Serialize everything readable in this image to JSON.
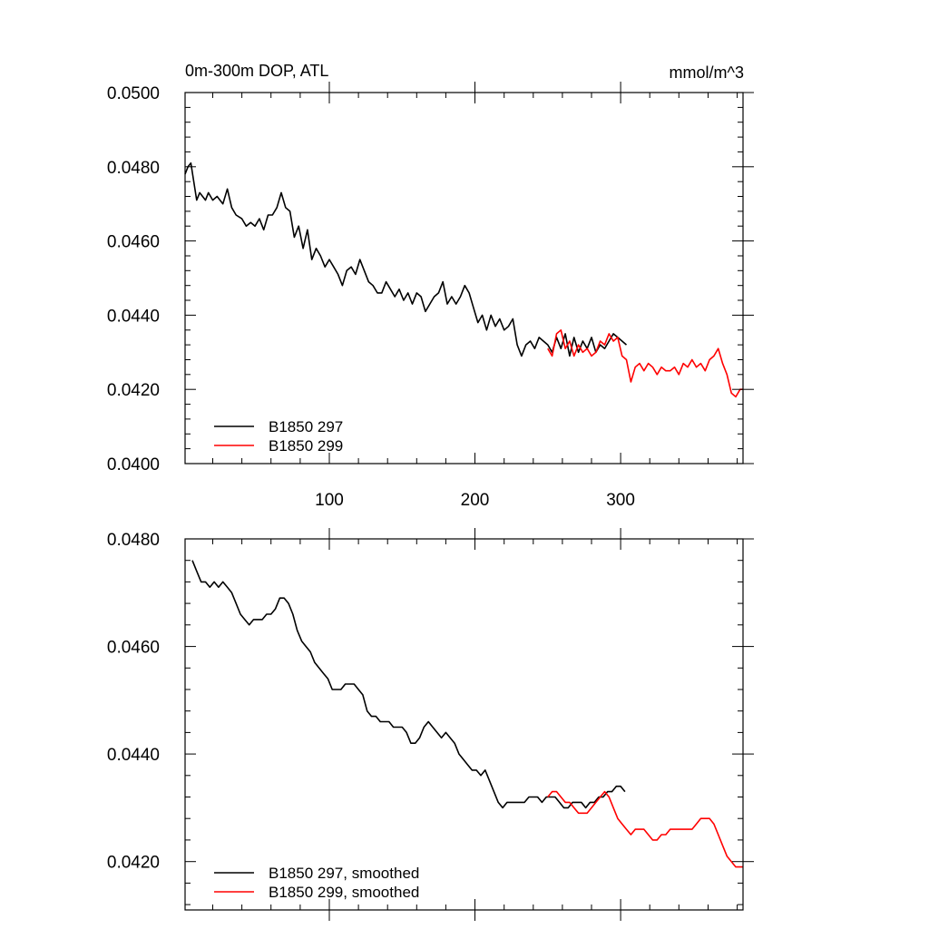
{
  "chart_data": [
    {
      "type": "line",
      "title": "0m-300m DOP, ATL",
      "units": "mmol/m^3",
      "xlim": [
        1,
        384
      ],
      "ylim": [
        0.04,
        0.05
      ],
      "x_ticks": [
        100,
        200,
        300
      ],
      "y_ticks": [
        "0.0400",
        "0.0420",
        "0.0440",
        "0.0460",
        "0.0480",
        "0.0500"
      ],
      "legend_position": "bottom-left",
      "series": [
        {
          "name": "B1850 297",
          "color": "#000000",
          "x": [
            1,
            3,
            5,
            7,
            9,
            11,
            13,
            15,
            17,
            20,
            23,
            27,
            30,
            33,
            36,
            40,
            43,
            46,
            49,
            52,
            55,
            58,
            61,
            64,
            67,
            70,
            73,
            76,
            79,
            82,
            85,
            88,
            91,
            94,
            97,
            100,
            103,
            106,
            109,
            112,
            115,
            118,
            121,
            124,
            127,
            130,
            133,
            136,
            139,
            142,
            145,
            148,
            151,
            154,
            157,
            160,
            163,
            166,
            169,
            172,
            175,
            178,
            181,
            184,
            187,
            190,
            193,
            196,
            199,
            202,
            205,
            208,
            211,
            214,
            217,
            220,
            223,
            226,
            229,
            232,
            235,
            238,
            241,
            244,
            247,
            250,
            253,
            256,
            259,
            262,
            265,
            268,
            271,
            274,
            277,
            280,
            283,
            286,
            289,
            292,
            295,
            298,
            301,
            304
          ],
          "y": [
            0.0478,
            0.048,
            0.0481,
            0.0476,
            0.0471,
            0.0473,
            0.0472,
            0.0471,
            0.0473,
            0.0471,
            0.0472,
            0.047,
            0.0474,
            0.0469,
            0.0467,
            0.0466,
            0.0464,
            0.0465,
            0.0464,
            0.0466,
            0.0463,
            0.0467,
            0.0467,
            0.0469,
            0.0473,
            0.0469,
            0.0468,
            0.0461,
            0.0464,
            0.0458,
            0.0463,
            0.0455,
            0.0458,
            0.0456,
            0.0453,
            0.0455,
            0.0453,
            0.0451,
            0.0448,
            0.0452,
            0.0453,
            0.0451,
            0.0455,
            0.0452,
            0.0449,
            0.0448,
            0.0446,
            0.0446,
            0.0449,
            0.0447,
            0.0445,
            0.0447,
            0.0444,
            0.0446,
            0.0443,
            0.0446,
            0.0445,
            0.0441,
            0.0443,
            0.0445,
            0.0446,
            0.0449,
            0.0443,
            0.0445,
            0.0443,
            0.0445,
            0.0448,
            0.0446,
            0.0442,
            0.0438,
            0.044,
            0.0436,
            0.044,
            0.0437,
            0.0439,
            0.0436,
            0.0437,
            0.0439,
            0.0432,
            0.0429,
            0.0432,
            0.0433,
            0.0431,
            0.0434,
            0.0433,
            0.0432,
            0.043,
            0.0434,
            0.0431,
            0.0435,
            0.0429,
            0.0434,
            0.043,
            0.0433,
            0.0431,
            0.0434,
            0.043,
            0.0432,
            0.0431,
            0.0433,
            0.0435,
            0.0434,
            0.0433,
            0.0432
          ]
        },
        {
          "name": "B1850 299",
          "color": "#ff0000",
          "x": [
            250,
            253,
            256,
            259,
            262,
            265,
            268,
            271,
            274,
            277,
            280,
            283,
            286,
            289,
            292,
            295,
            298,
            301,
            304,
            307,
            310,
            313,
            316,
            319,
            322,
            325,
            328,
            331,
            334,
            337,
            340,
            343,
            346,
            349,
            352,
            355,
            358,
            361,
            364,
            367,
            370,
            373,
            376,
            379,
            382,
            384
          ],
          "y": [
            0.0431,
            0.0429,
            0.0435,
            0.0436,
            0.0431,
            0.0433,
            0.0429,
            0.0432,
            0.043,
            0.0431,
            0.0429,
            0.043,
            0.0433,
            0.0432,
            0.0435,
            0.0433,
            0.0434,
            0.0429,
            0.0428,
            0.0422,
            0.0426,
            0.0427,
            0.0425,
            0.0427,
            0.0426,
            0.0424,
            0.0426,
            0.0425,
            0.0425,
            0.0426,
            0.0424,
            0.0427,
            0.0426,
            0.0428,
            0.0426,
            0.0427,
            0.0425,
            0.0428,
            0.0429,
            0.0431,
            0.0427,
            0.0424,
            0.0419,
            0.0418,
            0.042,
            0.042
          ]
        }
      ]
    },
    {
      "type": "line",
      "xlim": [
        1,
        384
      ],
      "ylim": [
        0.0411,
        0.048
      ],
      "y_ticks": [
        "0.0420",
        "0.0440",
        "0.0460",
        "0.0480"
      ],
      "legend_position": "bottom-left",
      "series": [
        {
          "name": "B1850 297, smoothed",
          "color": "#000000",
          "x": [
            6,
            9,
            12,
            15,
            18,
            21,
            24,
            27,
            30,
            33,
            36,
            39,
            42,
            45,
            48,
            51,
            54,
            57,
            60,
            63,
            66,
            69,
            72,
            75,
            78,
            81,
            84,
            87,
            90,
            93,
            96,
            99,
            102,
            105,
            108,
            111,
            114,
            117,
            120,
            123,
            126,
            129,
            132,
            135,
            138,
            141,
            144,
            147,
            150,
            153,
            156,
            159,
            162,
            165,
            168,
            171,
            174,
            177,
            180,
            183,
            186,
            189,
            192,
            195,
            198,
            201,
            204,
            207,
            210,
            213,
            216,
            219,
            222,
            225,
            228,
            231,
            234,
            237,
            240,
            243,
            246,
            249,
            252,
            255,
            258,
            261,
            264,
            267,
            270,
            273,
            276,
            279,
            282,
            285,
            288,
            291,
            294,
            297,
            300,
            303
          ],
          "y": [
            0.0476,
            0.0474,
            0.0472,
            0.0472,
            0.0471,
            0.0472,
            0.0471,
            0.0472,
            0.0471,
            0.047,
            0.0468,
            0.0466,
            0.0465,
            0.0464,
            0.0465,
            0.0465,
            0.0465,
            0.0466,
            0.0466,
            0.0467,
            0.0469,
            0.0469,
            0.0468,
            0.0466,
            0.0463,
            0.0461,
            0.046,
            0.0459,
            0.0457,
            0.0456,
            0.0455,
            0.0454,
            0.0452,
            0.0452,
            0.0452,
            0.0453,
            0.0453,
            0.0453,
            0.0452,
            0.0451,
            0.0448,
            0.0447,
            0.0447,
            0.0446,
            0.0446,
            0.0446,
            0.0445,
            0.0445,
            0.0445,
            0.0444,
            0.0442,
            0.0442,
            0.0443,
            0.0445,
            0.0446,
            0.0445,
            0.0444,
            0.0443,
            0.0444,
            0.0443,
            0.0442,
            0.044,
            0.0439,
            0.0438,
            0.0437,
            0.0437,
            0.0436,
            0.0437,
            0.0435,
            0.0433,
            0.0431,
            0.043,
            0.0431,
            0.0431,
            0.0431,
            0.0431,
            0.0431,
            0.0432,
            0.0432,
            0.0432,
            0.0431,
            0.0432,
            0.0432,
            0.0432,
            0.0431,
            0.043,
            0.043,
            0.0431,
            0.0431,
            0.0431,
            0.043,
            0.0431,
            0.0431,
            0.0432,
            0.0432,
            0.0433,
            0.0433,
            0.0434,
            0.0434,
            0.0433
          ]
        },
        {
          "name": "B1850 299, smoothed",
          "color": "#ff0000",
          "x": [
            250,
            253,
            256,
            259,
            262,
            265,
            268,
            271,
            274,
            277,
            280,
            283,
            286,
            289,
            292,
            295,
            298,
            301,
            304,
            307,
            310,
            313,
            316,
            319,
            322,
            325,
            328,
            331,
            334,
            337,
            340,
            343,
            346,
            349,
            352,
            355,
            358,
            361,
            364,
            367,
            370,
            373,
            376,
            379,
            382,
            384
          ],
          "y": [
            0.0432,
            0.0433,
            0.0433,
            0.0432,
            0.0431,
            0.0431,
            0.043,
            0.0429,
            0.0429,
            0.0429,
            0.043,
            0.0431,
            0.0432,
            0.0433,
            0.0432,
            0.043,
            0.0428,
            0.0427,
            0.0426,
            0.0425,
            0.0426,
            0.0426,
            0.0426,
            0.0425,
            0.0424,
            0.0424,
            0.0425,
            0.0425,
            0.0426,
            0.0426,
            0.0426,
            0.0426,
            0.0426,
            0.0426,
            0.0427,
            0.0428,
            0.0428,
            0.0428,
            0.0427,
            0.0425,
            0.0423,
            0.0421,
            0.042,
            0.0419,
            0.0419,
            0.0419
          ]
        }
      ]
    }
  ]
}
